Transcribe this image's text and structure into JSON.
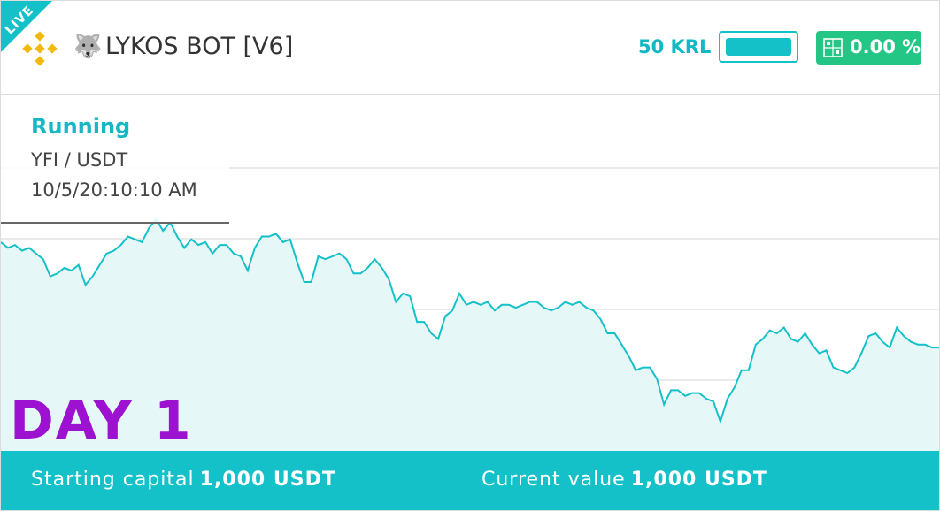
{
  "header": {
    "live_label": "LIVE",
    "exchange_icon": "binance-icon",
    "bot_emoji": "wolf-icon",
    "bot_title": "LYKOS BOT [V6]",
    "capital_amount": "50 KRL",
    "progress": 1.0,
    "percent_change": "0.00 %",
    "colors": {
      "accent": "#14c1c9",
      "positive": "#24c686",
      "exchange": "#f0b90b"
    }
  },
  "info": {
    "status": "Running",
    "pair": "YFI / USDT",
    "timestamp": "10/5/20:10:10 AM"
  },
  "day_label": "DAY 1",
  "day_color": "#9c12d0",
  "footer": {
    "starting_label": "Starting capital",
    "starting_value": "1,000 USDT",
    "current_label": "Current value",
    "current_value": "1,000 USDT"
  },
  "chart_data": {
    "type": "area",
    "grid": true,
    "line_color": "#14c1c9",
    "fill_color": "#e6f7f8",
    "values": [
      64,
      62,
      63,
      61,
      62,
      60,
      58,
      52,
      53,
      55,
      54,
      56,
      49,
      52,
      56,
      60,
      61,
      63,
      66,
      65,
      64,
      69,
      72,
      68,
      71,
      66,
      62,
      65,
      63,
      64,
      60,
      63,
      63,
      60,
      59,
      54,
      62,
      66,
      66,
      67,
      64,
      65,
      57,
      50,
      50,
      59,
      58,
      59,
      60,
      58,
      53,
      53,
      55,
      58,
      55,
      51,
      43,
      46,
      45,
      36,
      36,
      32,
      30,
      38,
      40,
      46,
      42,
      43,
      42,
      43,
      40,
      42,
      42,
      41,
      42,
      43,
      43,
      41,
      40,
      41,
      43,
      42,
      43,
      41,
      40,
      37,
      32,
      32,
      28,
      24,
      19,
      20,
      20,
      16,
      7,
      12,
      12,
      10,
      11,
      11,
      9,
      8,
      1,
      9,
      13,
      19,
      19,
      28,
      30,
      33,
      32,
      34,
      30,
      29,
      32,
      28,
      25,
      26,
      20,
      19,
      18,
      20,
      25,
      31,
      32,
      29,
      27,
      34,
      31,
      29,
      28,
      28,
      27,
      27
    ]
  }
}
